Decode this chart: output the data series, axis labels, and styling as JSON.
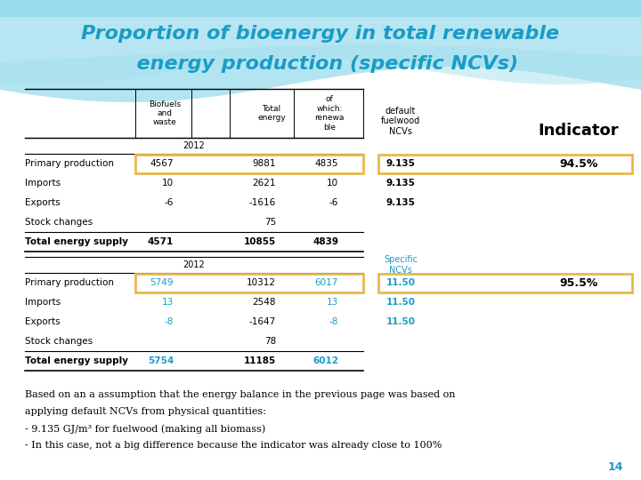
{
  "title_line1": "Proportion of bioenergy in total renewable",
  "title_line2": "  energy production (specific NCVs)",
  "title_color": "#1a9cc7",
  "bg_color": "#ffffff",
  "page_number": "14",
  "table1_rows": [
    [
      "Primary production",
      "4567",
      "9881",
      "4835"
    ],
    [
      "Imports",
      "10",
      "2621",
      "10"
    ],
    [
      "Exports",
      "-6",
      "-1616",
      "-6"
    ],
    [
      "Stock changes",
      "",
      "75",
      ""
    ],
    [
      "Total energy supply",
      "4571",
      "10855",
      "4839"
    ]
  ],
  "table1_ncv_rows": [
    "9.135",
    "9.135",
    "9.135",
    "",
    ""
  ],
  "table1_indicator_value": "94.5%",
  "table2_rows": [
    [
      "Primary production",
      "5749",
      "10312",
      "6017"
    ],
    [
      "Imports",
      "13",
      "2548",
      "13"
    ],
    [
      "Exports",
      "-8",
      "-1647",
      "-8"
    ],
    [
      "Stock changes",
      "",
      "78",
      ""
    ],
    [
      "Total energy supply",
      "5754",
      "11185",
      "6012"
    ]
  ],
  "table2_ncv_rows": [
    "11.50",
    "11.50",
    "11.50",
    "",
    ""
  ],
  "table2_indicator_value": "95.5%",
  "table2_ncv_color": "#1a9cc7",
  "table2_data_color": "#1a9cc7",
  "body_text": [
    "Based on an a assumption that the energy balance in the previous page was based on",
    "applying default NCVs from physical quantities:",
    "- 9.135 GJ/m³ for fuelwood (making all biomass)",
    "- In this case, not a big difference because the indicator was already close to 100%"
  ],
  "highlight_color": "#e8b84b",
  "wave_color1": "#7fd4e8",
  "wave_color2": "#a8e0ee",
  "wave_color3": "#c8ecf5"
}
